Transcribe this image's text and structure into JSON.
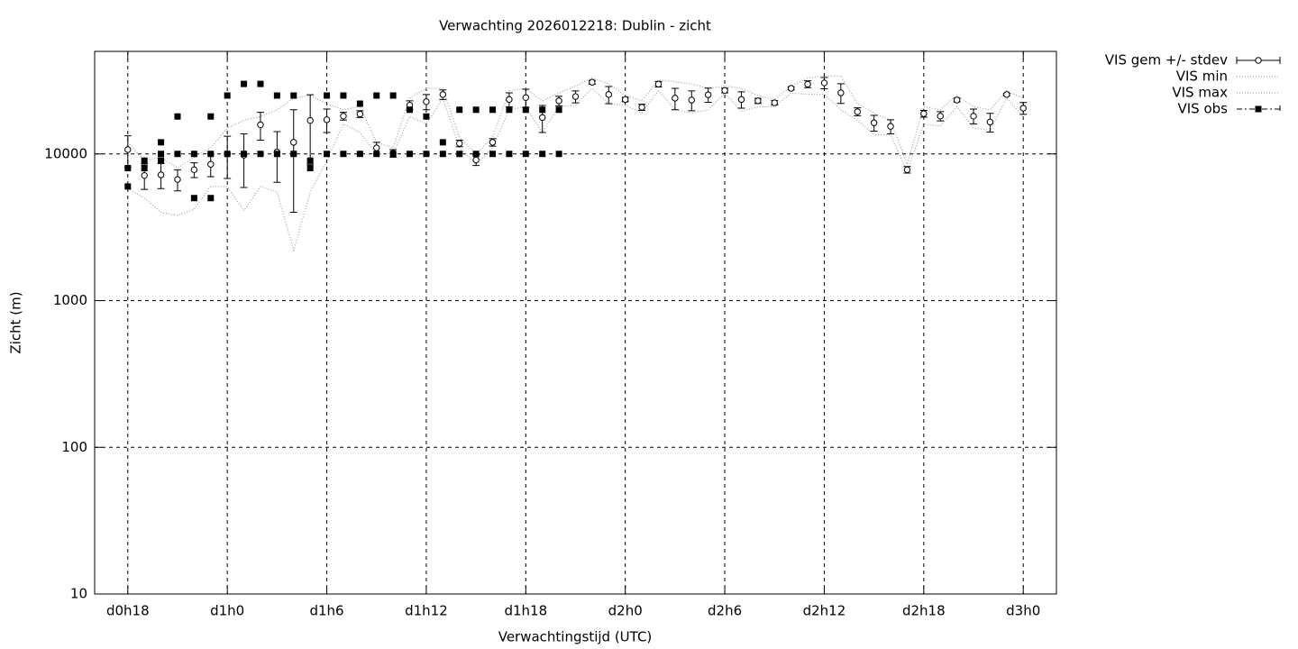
{
  "chart_data": {
    "type": "errorbar",
    "title": "Verwachting 2026012218: Dublin - zicht",
    "x_label": "Verwachtingstijd (UTC)",
    "y_label": "Zicht (m)",
    "log_scale": true,
    "grid": true,
    "legend": "outside-top-right",
    "xlim": [
      16,
      74
    ],
    "xticks": [
      {
        "value": 18,
        "label": "d0h18"
      },
      {
        "value": 24,
        "label": "d1h0"
      },
      {
        "value": 30,
        "label": "d1h6"
      },
      {
        "value": 36,
        "label": "d1h12"
      },
      {
        "value": 42,
        "label": "d1h18"
      },
      {
        "value": 48,
        "label": "d2h0"
      },
      {
        "value": 54,
        "label": "d2h6"
      },
      {
        "value": 60,
        "label": "d2h12"
      },
      {
        "value": 66,
        "label": "d2h18"
      },
      {
        "value": 72,
        "label": "d3h0"
      }
    ],
    "ylim": [
      10,
      50000
    ],
    "yticks": [
      10,
      100,
      1000,
      10000
    ],
    "x": [
      18,
      19,
      20,
      21,
      22,
      23,
      24,
      25,
      26,
      27,
      28,
      29,
      30,
      31,
      32,
      33,
      34,
      35,
      36,
      37,
      38,
      39,
      40,
      41,
      42,
      43,
      44,
      45,
      46,
      47,
      48,
      49,
      50,
      51,
      52,
      53,
      54,
      55,
      56,
      57,
      58,
      59,
      60,
      61,
      62,
      63,
      64,
      65,
      66,
      67,
      68,
      69,
      70,
      71,
      72
    ],
    "series": [
      {
        "name": "VIS gem +/- stdev",
        "color": "#000000",
        "values": [
          10700,
          7130,
          7200,
          6700,
          7800,
          8500,
          10000,
          9800,
          15800,
          10300,
          12000,
          16900,
          17100,
          18100,
          18700,
          11000,
          10100,
          21500,
          22700,
          25400,
          11800,
          9100,
          12000,
          23500,
          24200,
          17700,
          23000,
          24600,
          30800,
          25400,
          23500,
          20800,
          29900,
          24000,
          23300,
          25300,
          27100,
          23500,
          23000,
          22300,
          28000,
          29900,
          30500,
          26100,
          19400,
          16300,
          15400,
          7800,
          18800,
          18100,
          23300,
          18100,
          16500,
          25400,
          20500
        ],
        "errors": [
          2600,
          1400,
          1400,
          1100,
          900,
          1500,
          3200,
          3900,
          3400,
          3900,
          8000,
          8400,
          3100,
          1100,
          1000,
          1000,
          600,
          1500,
          2700,
          1900,
          600,
          760,
          700,
          2600,
          3400,
          3700,
          1700,
          2300,
          900,
          3400,
          800,
          1000,
          1300,
          4000,
          3600,
          2800,
          1000,
          3000,
          900,
          800,
          700,
          1600,
          2700,
          4000,
          1200,
          2000,
          1700,
          400,
          1000,
          1300,
          700,
          2100,
          2400,
          500,
          1900
        ]
      },
      {
        "name": "VIS min",
        "color": "#a0a0a0",
        "values": [
          5800,
          5000,
          4000,
          3800,
          4200,
          6000,
          6000,
          4100,
          6000,
          5500,
          2200,
          5500,
          9000,
          16000,
          14000,
          10000,
          10000,
          18000,
          16000,
          24000,
          11000,
          8500,
          11000,
          20000,
          21000,
          14000,
          21000,
          21500,
          28000,
          22000,
          21500,
          19000,
          27000,
          20000,
          19000,
          20000,
          26000,
          19500,
          21000,
          21000,
          26000,
          25500,
          25500,
          20000,
          17000,
          13500,
          13500,
          7500,
          16000,
          15500,
          21000,
          15000,
          14500,
          24000,
          18000
        ]
      },
      {
        "name": "VIS max",
        "color": "#a0a0a0",
        "values": [
          12000,
          9000,
          9500,
          8000,
          9500,
          11000,
          15000,
          17000,
          18000,
          20000,
          24000,
          25000,
          22000,
          20000,
          21000,
          12000,
          11000,
          24000,
          28000,
          28000,
          13000,
          10000,
          13000,
          27000,
          28000,
          23000,
          26000,
          29000,
          33000,
          30000,
          25000,
          23000,
          32000,
          31000,
          30000,
          28000,
          29000,
          28000,
          25000,
          23500,
          29000,
          33000,
          34000,
          34000,
          22000,
          19000,
          17000,
          8500,
          21000,
          20000,
          25000,
          21000,
          20000,
          27000,
          24000
        ]
      },
      {
        "name": "VIS obs",
        "color": "#000000",
        "x": [
          18,
          18,
          19,
          19,
          20,
          20,
          20,
          21,
          21,
          22,
          22,
          23,
          23,
          23,
          24,
          24,
          25,
          25,
          26,
          26,
          27,
          27,
          28,
          28,
          29,
          29,
          30,
          30,
          31,
          31,
          32,
          32,
          33,
          33,
          34,
          34,
          35,
          35,
          36,
          36,
          37,
          37,
          38,
          38,
          39,
          39,
          40,
          40,
          41,
          41,
          42,
          42,
          43,
          43,
          44,
          44
        ],
        "values": [
          8000,
          6000,
          9000,
          8000,
          12000,
          10000,
          9000,
          18000,
          10000,
          10000,
          5000,
          18000,
          10000,
          5000,
          25000,
          10000,
          30000,
          10000,
          30000,
          10000,
          25000,
          10000,
          25000,
          10000,
          9000,
          8000,
          25000,
          10000,
          25000,
          10000,
          22000,
          10000,
          25000,
          10000,
          25000,
          10000,
          20000,
          10000,
          18000,
          10000,
          12000,
          10000,
          20000,
          10000,
          20000,
          10000,
          20000,
          10000,
          20000,
          10000,
          20000,
          10000,
          20000,
          10000,
          20000,
          10000
        ]
      }
    ]
  }
}
